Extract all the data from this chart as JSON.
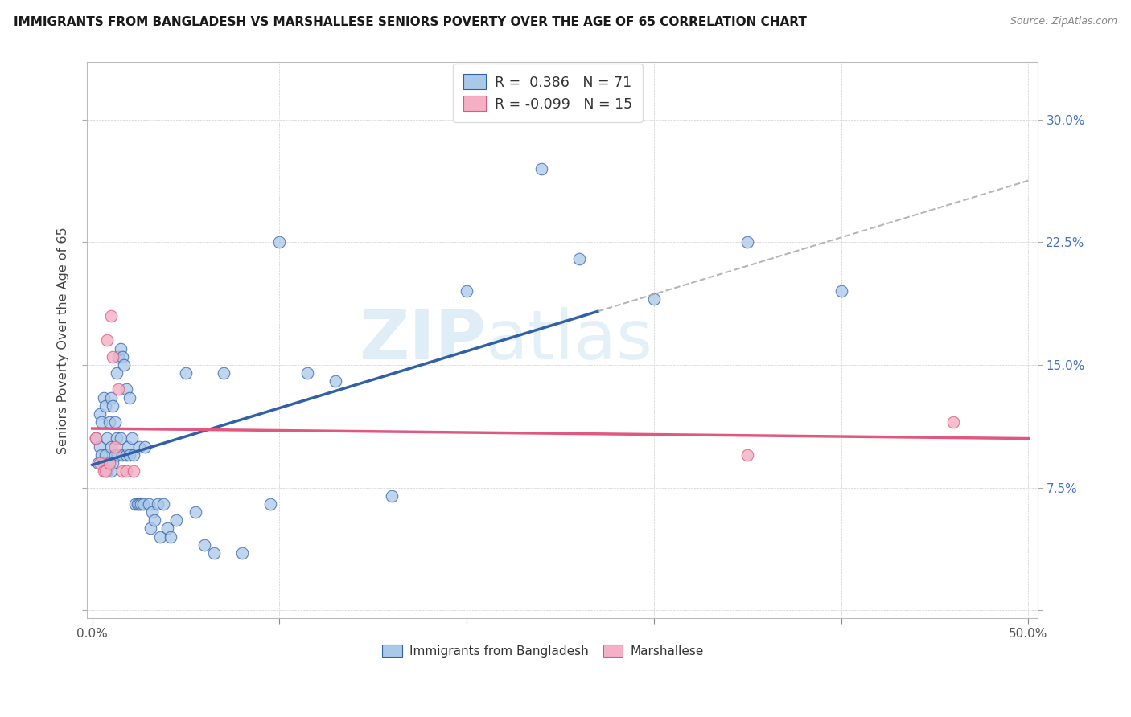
{
  "title": "IMMIGRANTS FROM BANGLADESH VS MARSHALLESE SENIORS POVERTY OVER THE AGE OF 65 CORRELATION CHART",
  "source": "Source: ZipAtlas.com",
  "ylabel": "Seniors Poverty Over the Age of 65",
  "r_bangladesh": 0.386,
  "n_bangladesh": 71,
  "r_marshallese": -0.099,
  "n_marshallese": 15,
  "color_bangladesh": "#aac8e8",
  "color_marshallese": "#f4b0c4",
  "line_color_bangladesh": "#3060a8",
  "line_color_marshallese": "#e05880",
  "dashed_color": "#aaaaaa",
  "watermark_zip": "ZIP",
  "watermark_atlas": "atlas",
  "legend_label_1": "Immigrants from Bangladesh",
  "legend_label_2": "Marshallese",
  "xlim": [
    -0.003,
    0.505
  ],
  "ylim": [
    -0.005,
    0.335
  ],
  "xticks": [
    0.0,
    0.1,
    0.2,
    0.3,
    0.4,
    0.5
  ],
  "xtick_labels": [
    "0.0%",
    "",
    "",
    "",
    "",
    "50.0%"
  ],
  "yticks": [
    0.0,
    0.075,
    0.15,
    0.225,
    0.3
  ],
  "ytick_right_labels": [
    "",
    "7.5%",
    "15.0%",
    "22.5%",
    "30.0%"
  ],
  "bd_x": [
    0.002,
    0.003,
    0.004,
    0.004,
    0.005,
    0.005,
    0.006,
    0.006,
    0.007,
    0.007,
    0.008,
    0.008,
    0.009,
    0.009,
    0.01,
    0.01,
    0.01,
    0.011,
    0.011,
    0.012,
    0.012,
    0.013,
    0.013,
    0.014,
    0.014,
    0.015,
    0.015,
    0.016,
    0.016,
    0.017,
    0.018,
    0.018,
    0.019,
    0.02,
    0.02,
    0.021,
    0.022,
    0.023,
    0.024,
    0.025,
    0.025,
    0.026,
    0.027,
    0.028,
    0.03,
    0.031,
    0.032,
    0.033,
    0.035,
    0.036,
    0.038,
    0.04,
    0.042,
    0.045,
    0.05,
    0.055,
    0.06,
    0.065,
    0.07,
    0.08,
    0.095,
    0.1,
    0.115,
    0.13,
    0.16,
    0.2,
    0.24,
    0.26,
    0.3,
    0.35,
    0.4
  ],
  "bd_y": [
    0.105,
    0.09,
    0.12,
    0.1,
    0.115,
    0.095,
    0.13,
    0.09,
    0.125,
    0.095,
    0.105,
    0.085,
    0.115,
    0.09,
    0.13,
    0.1,
    0.085,
    0.125,
    0.09,
    0.115,
    0.095,
    0.145,
    0.105,
    0.155,
    0.095,
    0.16,
    0.105,
    0.155,
    0.095,
    0.15,
    0.135,
    0.095,
    0.1,
    0.13,
    0.095,
    0.105,
    0.095,
    0.065,
    0.065,
    0.1,
    0.065,
    0.065,
    0.065,
    0.1,
    0.065,
    0.05,
    0.06,
    0.055,
    0.065,
    0.045,
    0.065,
    0.05,
    0.045,
    0.055,
    0.145,
    0.06,
    0.04,
    0.035,
    0.145,
    0.035,
    0.065,
    0.225,
    0.145,
    0.14,
    0.07,
    0.195,
    0.27,
    0.215,
    0.19,
    0.225,
    0.195
  ],
  "ms_x": [
    0.002,
    0.004,
    0.006,
    0.007,
    0.008,
    0.009,
    0.01,
    0.011,
    0.012,
    0.014,
    0.016,
    0.018,
    0.022,
    0.35,
    0.46
  ],
  "ms_y": [
    0.105,
    0.09,
    0.085,
    0.085,
    0.165,
    0.09,
    0.18,
    0.155,
    0.1,
    0.135,
    0.085,
    0.085,
    0.085,
    0.095,
    0.115
  ]
}
